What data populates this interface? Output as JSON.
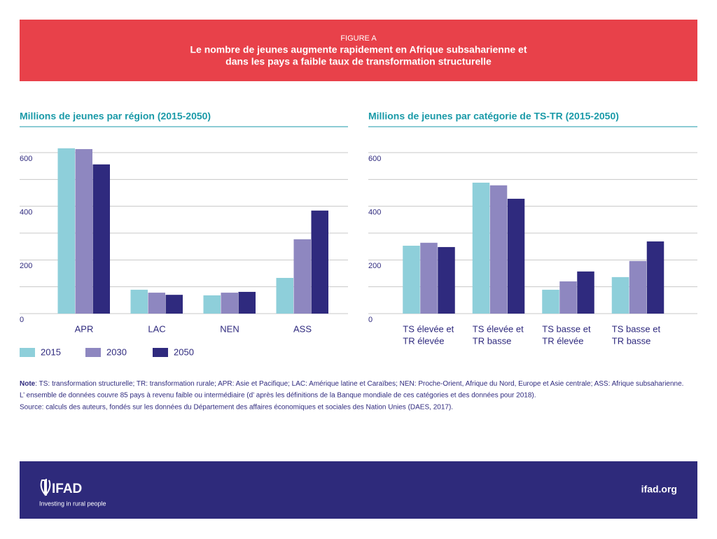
{
  "header": {
    "figure_label": "FIGURE A",
    "title": [
      "Le nombre de jeunes augmente rapidement en Afrique subsaharienne et",
      "dans les pays a faible taux de transformation structurelle"
    ]
  },
  "chart_data": [
    {
      "type": "bar",
      "title": "Millions de jeunes par région (2015-2050)",
      "categories": [
        [
          "APR"
        ],
        [
          "LAC"
        ],
        [
          "NEN"
        ],
        [
          "ASS"
        ]
      ],
      "series": [
        {
          "name": "2015",
          "color": "#8ecfda",
          "values": [
            616,
            89,
            68,
            133
          ]
        },
        {
          "name": "2030",
          "color": "#8e87c0",
          "values": [
            613,
            78,
            78,
            277
          ]
        },
        {
          "name": "2050",
          "color": "#2f2a7e",
          "values": [
            556,
            70,
            81,
            384
          ]
        }
      ],
      "ylim": [
        0,
        600
      ],
      "yticks": [
        0,
        200,
        400,
        600
      ],
      "minor_yticks": [
        100,
        300,
        500
      ],
      "grid": true,
      "legend": "bottom-left"
    },
    {
      "type": "bar",
      "title": "Millions de jeunes par catégorie de TS-TR (2015-2050)",
      "categories": [
        [
          "TS élevée et",
          "TR élevée"
        ],
        [
          "TS élevée et",
          "TR basse"
        ],
        [
          "TS basse et",
          "TR élevée"
        ],
        [
          "TS basse et",
          "TR basse"
        ]
      ],
      "series": [
        {
          "name": "2015",
          "color": "#8ecfda",
          "values": [
            253,
            488,
            89,
            136
          ]
        },
        {
          "name": "2030",
          "color": "#8e87c0",
          "values": [
            264,
            478,
            120,
            196
          ]
        },
        {
          "name": "2050",
          "color": "#2f2a7e",
          "values": [
            248,
            428,
            157,
            269
          ]
        }
      ],
      "ylim": [
        0,
        600
      ],
      "yticks": [
        0,
        200,
        400,
        600
      ],
      "minor_yticks": [
        100,
        300,
        500
      ],
      "grid": true
    }
  ],
  "note": {
    "label": "Note",
    "lines": [
      ": TS: transformation structurelle; TR: transformation rurale; APR: Asie et Pacifique; LAC: Amérique latine et Caraïbes; NEN: Proche-Orient, Afrique du Nord, Europe et Asie centrale; ASS: Afrique subsaharienne.",
      "L’ ensemble de données couvre 85 pays à revenu faible ou intermédiaire (d’ après les définitions de la Banque mondiale de ces catégories et des données pour 2018).",
      "Source: calculs des auteurs, fondés sur les données du Département des affaires économiques et sociales des Nation Unies (DAES, 2017)."
    ]
  },
  "footer": {
    "logo": "IFAD",
    "tagline": "Investing in rural people",
    "url": "ifad.org"
  }
}
